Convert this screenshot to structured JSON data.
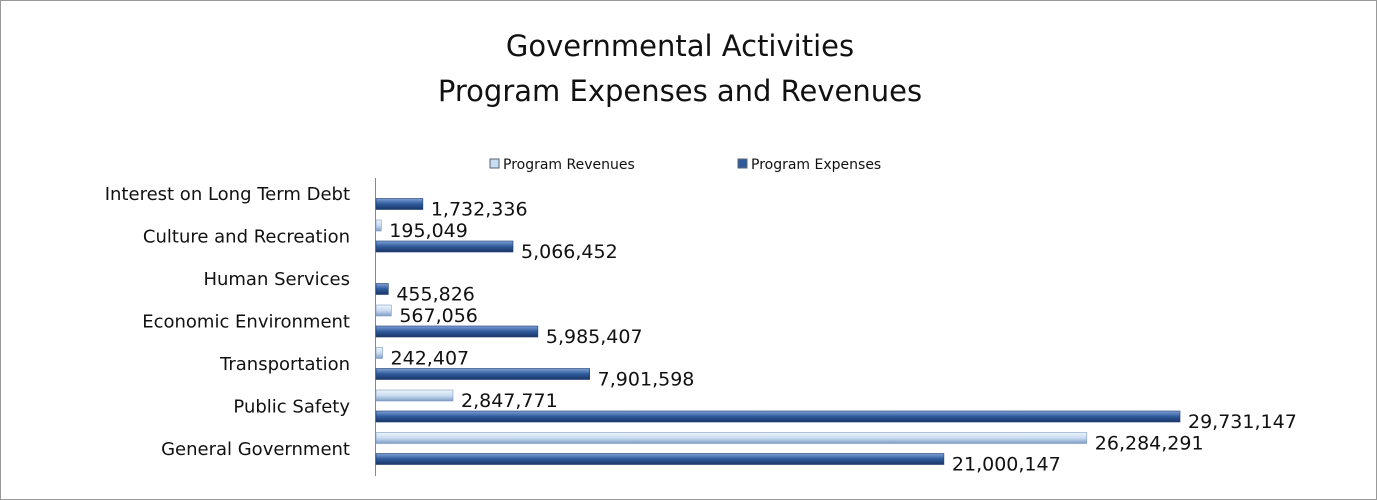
{
  "chart_data": {
    "type": "hbar",
    "title": [
      "Governmental Activities",
      "Program Expenses and Revenues"
    ],
    "categories": [
      "General Government",
      "Public Safety",
      "Transportation",
      "Economic Environment",
      "Human Services",
      "Culture and Recreation",
      "Interest on Long Term Debt"
    ],
    "series": [
      {
        "name": "Program Revenues",
        "color": "#c9dcf2",
        "values": [
          26284291,
          2847771,
          242407,
          567056,
          null,
          195049,
          null
        ],
        "value_labels": [
          "26,284,291",
          "2,847,771",
          "242,407",
          "567,056",
          null,
          "195,049",
          null
        ]
      },
      {
        "name": "Program Expenses",
        "color": "#2f5b9c",
        "values": [
          21000147,
          29731147,
          7901598,
          5985407,
          455826,
          5066452,
          1732336
        ],
        "value_labels": [
          "21,000,147",
          "29,731,147",
          "7,901,598",
          "5,985,407",
          "455,826",
          "5,066,452",
          "1,732,336"
        ]
      }
    ]
  }
}
